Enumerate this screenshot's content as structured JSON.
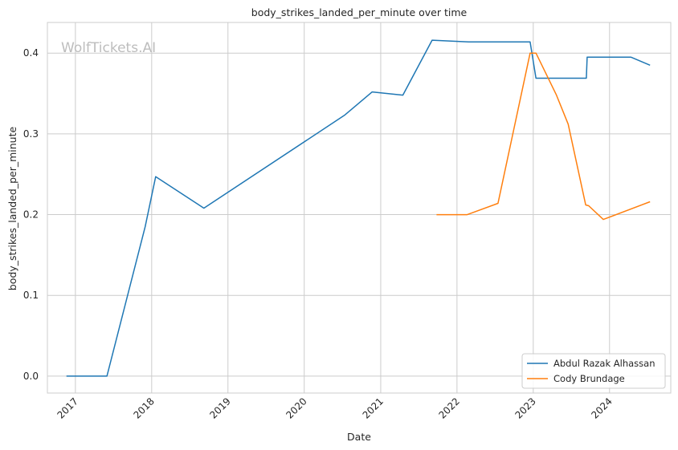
{
  "chart_data": {
    "type": "line",
    "title": "body_strikes_landed_per_minute over time",
    "xlabel": "Date",
    "ylabel": "body_strikes_landed_per_minute",
    "watermark": "WolfTickets.AI",
    "x_type": "date",
    "xlim": [
      "2016-08-20",
      "2024-10-20"
    ],
    "ylim": [
      -0.021,
      0.438
    ],
    "x_ticks": [
      "2017",
      "2018",
      "2019",
      "2020",
      "2021",
      "2022",
      "2023",
      "2024"
    ],
    "y_ticks": [
      "0.0",
      "0.1",
      "0.2",
      "0.3",
      "0.4"
    ],
    "grid": true,
    "legend_position": "lower-right",
    "colors": {
      "Abdul Razak Alhassan": "#1f77b4",
      "Cody Brundage": "#ff7f0e"
    },
    "series": [
      {
        "name": "Abdul Razak Alhassan",
        "points": [
          [
            "2016-11-19",
            0.0
          ],
          [
            "2017-06-01",
            0.0
          ],
          [
            "2017-12-01",
            0.185
          ],
          [
            "2018-01-20",
            0.247
          ],
          [
            "2018-09-08",
            0.208
          ],
          [
            "2020-07-11",
            0.323
          ],
          [
            "2020-11-21",
            0.352
          ],
          [
            "2021-04-17",
            0.348
          ],
          [
            "2021-09-04",
            0.416
          ],
          [
            "2022-02-26",
            0.414
          ],
          [
            "2022-12-17",
            0.414
          ],
          [
            "2023-01-14",
            0.369
          ],
          [
            "2023-09-12",
            0.369
          ],
          [
            "2023-09-16",
            0.395
          ],
          [
            "2024-04-13",
            0.395
          ],
          [
            "2024-07-13",
            0.385
          ]
        ]
      },
      {
        "name": "Cody Brundage",
        "points": [
          [
            "2021-09-25",
            0.2
          ],
          [
            "2022-02-19",
            0.2
          ],
          [
            "2022-07-16",
            0.214
          ],
          [
            "2022-12-17",
            0.4
          ],
          [
            "2023-01-14",
            0.4
          ],
          [
            "2023-04-22",
            0.348
          ],
          [
            "2023-06-17",
            0.312
          ],
          [
            "2023-09-09",
            0.212
          ],
          [
            "2023-09-23",
            0.211
          ],
          [
            "2023-12-02",
            0.194
          ],
          [
            "2024-07-13",
            0.216
          ]
        ]
      }
    ]
  }
}
